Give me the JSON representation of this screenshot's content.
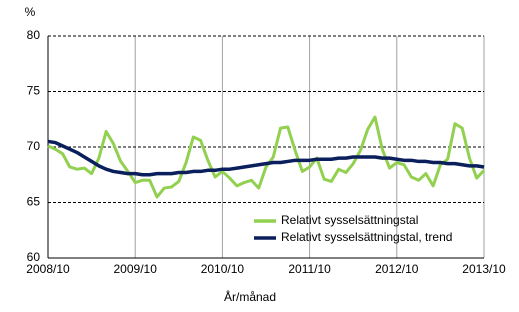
{
  "chart_data": {
    "type": "line",
    "y_label": "%",
    "x_label": "År/månad",
    "categories": [
      "2008/10",
      null,
      null,
      null,
      null,
      null,
      null,
      null,
      null,
      null,
      null,
      null,
      "2009/10",
      null,
      null,
      null,
      null,
      null,
      null,
      null,
      null,
      null,
      null,
      null,
      "2010/10",
      null,
      null,
      null,
      null,
      null,
      null,
      null,
      null,
      null,
      null,
      null,
      "2011/10",
      null,
      null,
      null,
      null,
      null,
      null,
      null,
      null,
      null,
      null,
      null,
      "2012/10",
      null,
      null,
      null,
      null,
      null,
      null,
      null,
      null,
      null,
      null,
      null,
      "2013/10"
    ],
    "series": [
      {
        "name": "Relativt sysselsättningstal",
        "color": "#92d050",
        "values": [
          70.1,
          69.8,
          69.4,
          68.2,
          68.0,
          68.1,
          67.6,
          69.0,
          71.4,
          70.3,
          68.7,
          67.8,
          66.8,
          67.0,
          67.0,
          65.5,
          66.3,
          66.4,
          66.9,
          68.6,
          70.9,
          70.6,
          68.8,
          67.3,
          67.8,
          67.2,
          66.5,
          66.8,
          67.0,
          66.3,
          68.2,
          69.1,
          71.7,
          71.8,
          69.7,
          67.8,
          68.2,
          69.0,
          67.1,
          66.9,
          68.0,
          67.7,
          68.5,
          69.7,
          71.6,
          72.7,
          69.8,
          68.1,
          68.6,
          68.4,
          67.3,
          67.0,
          67.6,
          66.5,
          68.4,
          68.9,
          72.1,
          71.7,
          69.0,
          67.2,
          67.9
        ]
      },
      {
        "name": "Relativt sysselsättningstal, trend",
        "color": "#0a1f5c",
        "values": [
          70.5,
          70.4,
          70.1,
          69.8,
          69.5,
          69.1,
          68.7,
          68.3,
          68.0,
          67.8,
          67.7,
          67.6,
          67.6,
          67.5,
          67.5,
          67.6,
          67.6,
          67.6,
          67.7,
          67.7,
          67.8,
          67.8,
          67.9,
          67.9,
          68.0,
          68.0,
          68.1,
          68.2,
          68.3,
          68.4,
          68.5,
          68.6,
          68.6,
          68.7,
          68.8,
          68.8,
          68.8,
          68.9,
          68.9,
          68.9,
          69.0,
          69.0,
          69.1,
          69.1,
          69.1,
          69.1,
          69.0,
          69.0,
          68.9,
          68.8,
          68.8,
          68.7,
          68.7,
          68.6,
          68.6,
          68.5,
          68.5,
          68.4,
          68.3,
          68.3,
          68.2
        ]
      }
    ],
    "ylim": [
      60,
      80
    ],
    "yticks": [
      60,
      65,
      70,
      75,
      80
    ],
    "grid": true
  }
}
